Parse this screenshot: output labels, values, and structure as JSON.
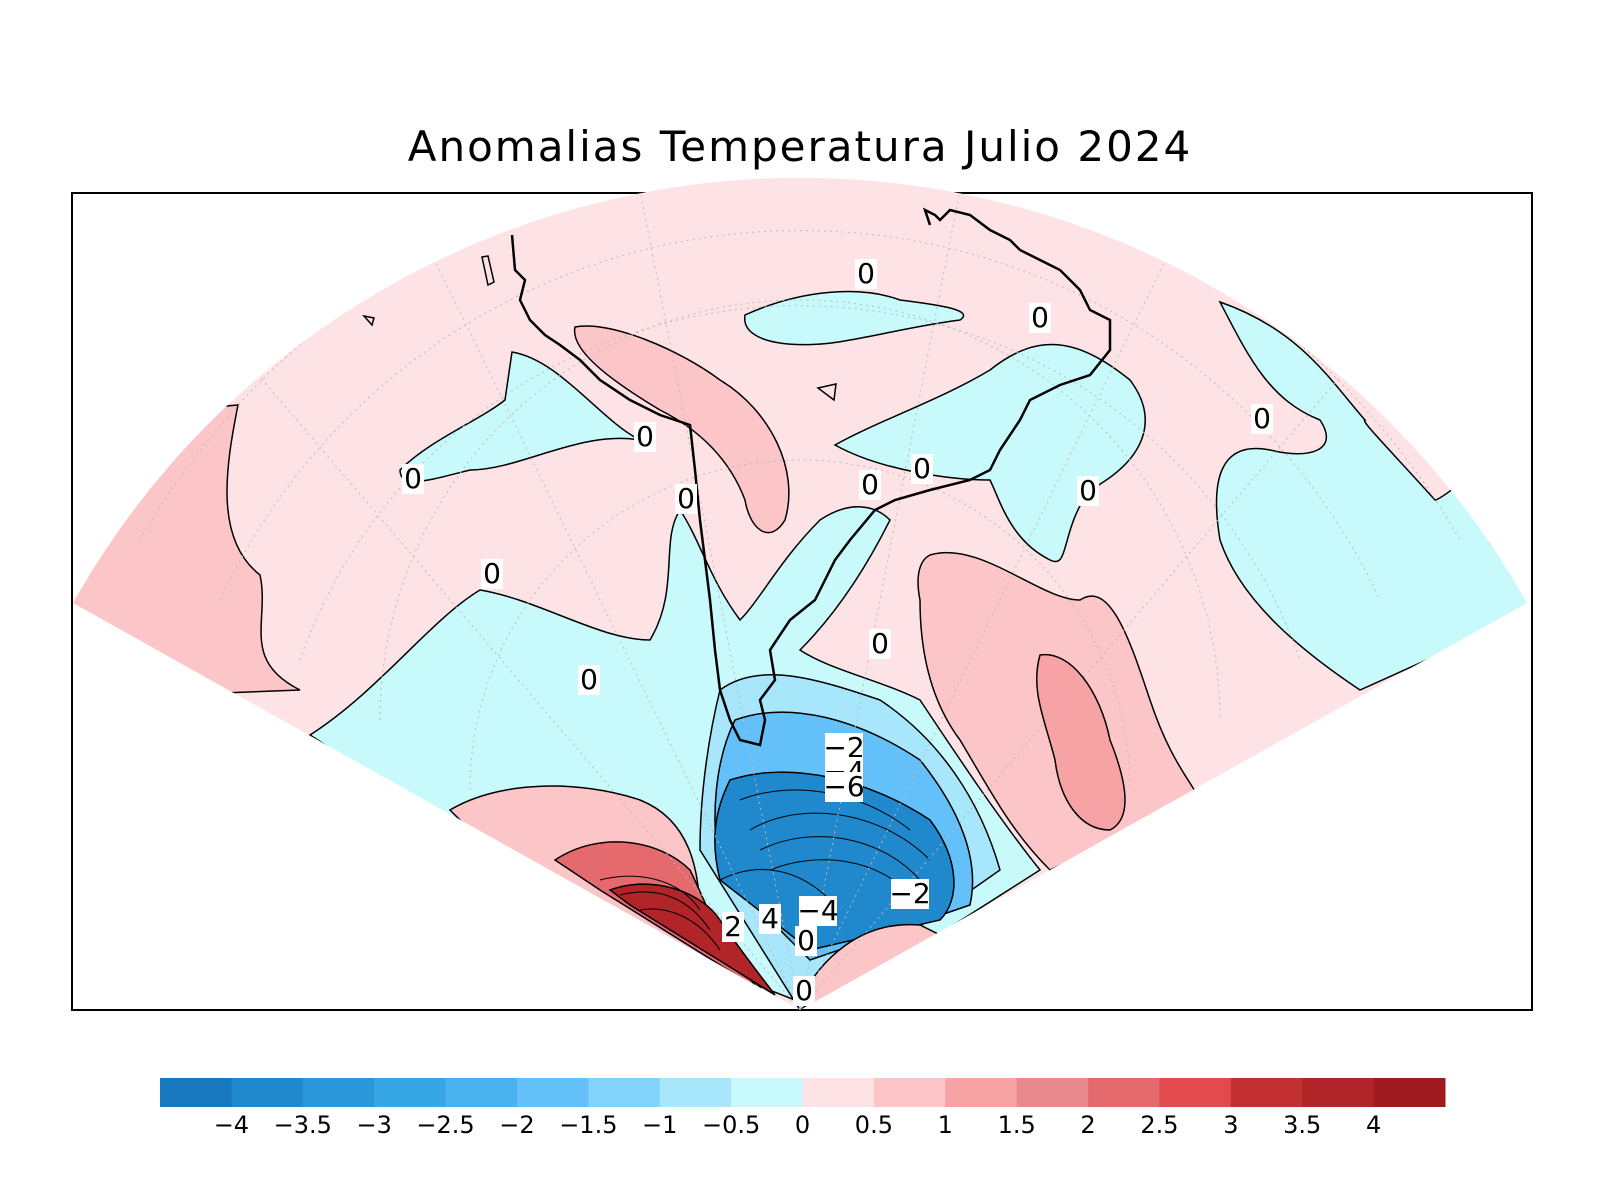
{
  "title": "Anomalias Temperatura Julio 2024",
  "colorbar": {
    "tick_labels": [
      "−4",
      "−3.5",
      "−3",
      "−2.5",
      "−2",
      "−1.5",
      "−1",
      "−0.5",
      "0",
      "0.5",
      "1",
      "1.5",
      "2",
      "2.5",
      "3",
      "3.5",
      "4"
    ],
    "colors": [
      "#1878be",
      "#2088cc",
      "#2a98db",
      "#37a6e4",
      "#4ab2ee",
      "#63c0f8",
      "#82d2fb",
      "#a8e6fb",
      "#c8fafc",
      "#fde3e5",
      "#fcc6c8",
      "#f7a3a6",
      "#e88a8d",
      "#e56a6e",
      "#e24a4e",
      "#c33034",
      "#b12428",
      "#9e1c20"
    ]
  },
  "contour_labels": [
    "0",
    "0",
    "0",
    "0",
    "0",
    "0",
    "0",
    "0",
    "0",
    "0",
    "0",
    "0",
    "0",
    "−2",
    "−4",
    "−6",
    "−2",
    "−4",
    "2",
    "4",
    "0"
  ],
  "colors": {
    "frame": "#000000",
    "coastline": "#000000",
    "gridline": "#bbbbbb"
  }
}
